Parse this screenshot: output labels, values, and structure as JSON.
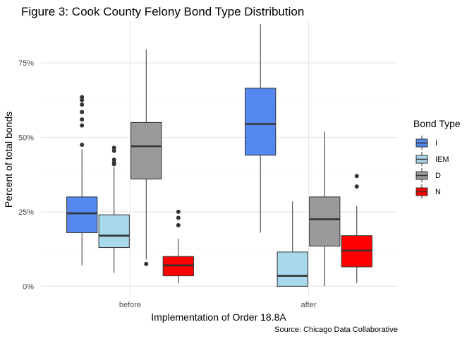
{
  "chart_data": {
    "type": "boxplot",
    "title": "Figure 3: Cook County Felony Bond Type Distribution",
    "xlabel": "Implementation of Order 18.8A",
    "ylabel": "Percent of total bonds",
    "caption": "Source: Chicago Data Collaborative",
    "ylim": [
      -0.03,
      0.89
    ],
    "yticks": [
      0,
      0.25,
      0.5,
      0.75
    ],
    "ytick_labels": [
      "0%",
      "25%",
      "50%",
      "75%"
    ],
    "categories": [
      "before",
      "after"
    ],
    "legend": {
      "title": "Bond Type",
      "position": "right"
    },
    "grid": true,
    "series": [
      {
        "name": "I",
        "color": "#5588ee",
        "boxes": [
          {
            "category": "before",
            "min": 0.07,
            "q1": 0.18,
            "median": 0.245,
            "q3": 0.3,
            "max": 0.46,
            "outliers": [
              0.475,
              0.54,
              0.56,
              0.585,
              0.61,
              0.625,
              0.635
            ]
          },
          {
            "category": "after",
            "min": 0.18,
            "q1": 0.44,
            "median": 0.545,
            "q3": 0.665,
            "max": 0.88,
            "outliers": []
          }
        ]
      },
      {
        "name": "IEM",
        "color": "#a8d8ec",
        "boxes": [
          {
            "category": "before",
            "min": 0.045,
            "q1": 0.13,
            "median": 0.17,
            "q3": 0.24,
            "max": 0.4,
            "outliers": [
              0.41,
              0.415,
              0.425,
              0.455,
              0.465
            ]
          },
          {
            "category": "after",
            "min": 0.0,
            "q1": 0.0,
            "median": 0.035,
            "q3": 0.115,
            "max": 0.285,
            "outliers": []
          }
        ]
      },
      {
        "name": "D",
        "color": "#9a9a9a",
        "boxes": [
          {
            "category": "before",
            "min": 0.09,
            "q1": 0.36,
            "median": 0.47,
            "q3": 0.55,
            "max": 0.795,
            "outliers": [
              0.075
            ]
          },
          {
            "category": "after",
            "min": 0.0,
            "q1": 0.135,
            "median": 0.225,
            "q3": 0.3,
            "max": 0.52,
            "outliers": []
          }
        ]
      },
      {
        "name": "N",
        "color": "#ff0000",
        "boxes": [
          {
            "category": "before",
            "min": 0.01,
            "q1": 0.035,
            "median": 0.07,
            "q3": 0.1,
            "max": 0.16,
            "outliers": [
              0.205,
              0.23,
              0.25
            ]
          },
          {
            "category": "after",
            "min": 0.01,
            "q1": 0.065,
            "median": 0.12,
            "q3": 0.17,
            "max": 0.27,
            "outliers": [
              0.335,
              0.37
            ]
          }
        ]
      }
    ]
  }
}
